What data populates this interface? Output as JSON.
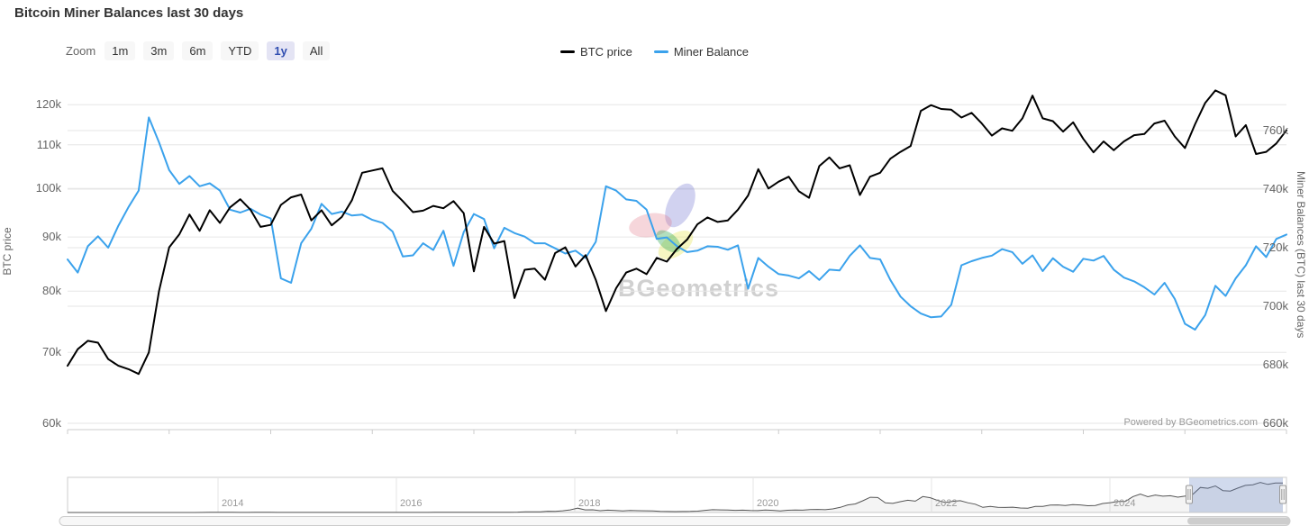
{
  "title": "Bitcoin Miner Balances last 30 days",
  "toolbar": {
    "zoom_label": "Zoom",
    "buttons": [
      {
        "label": "1m",
        "selected": false
      },
      {
        "label": "3m",
        "selected": false
      },
      {
        "label": "6m",
        "selected": false
      },
      {
        "label": "YTD",
        "selected": false
      },
      {
        "label": "1y",
        "selected": true
      },
      {
        "label": "All",
        "selected": false
      }
    ],
    "selected_color": "#e4e4f4",
    "selected_text_color": "#2f4db0"
  },
  "legend": [
    {
      "label": "BTC price",
      "color": "#000000"
    },
    {
      "label": "Miner Balance",
      "color": "#3ba2ec"
    }
  ],
  "axes": {
    "left": {
      "title": "BTC price",
      "ticks": [
        "60k",
        "70k",
        "80k",
        "90k",
        "100k",
        "110k",
        "120k"
      ]
    },
    "right": {
      "title": "Miner Balances (BTC) last 30 days",
      "ticks": [
        "660k",
        "680k",
        "700k",
        "720k",
        "740k",
        "760k"
      ]
    }
  },
  "watermark": "BGeometrics",
  "credits": "Powered by BGeometrics.com",
  "navigator": {
    "years": [
      "2014",
      "2016",
      "2018",
      "2020",
      "2022",
      "2024"
    ],
    "selected_range": "last 1 year"
  },
  "chart_data": {
    "type": "line",
    "selected_range": "1y",
    "grid": true,
    "legend_position": "top-center",
    "left_axis": {
      "label": "BTC price",
      "scale": "log",
      "ticks_k": [
        60,
        70,
        80,
        90,
        100,
        110,
        120
      ],
      "unit": "USD thousands"
    },
    "right_axis": {
      "label": "Miner Balances (BTC) last 30 days",
      "scale": "linear",
      "ticks_k": [
        660,
        680,
        700,
        720,
        740,
        760
      ],
      "unit": "BTC thousands"
    },
    "series": [
      {
        "name": "BTC price",
        "axis": "left",
        "color": "#000000",
        "unit": "USD (k)",
        "values": [
          68.0,
          70.5,
          71.8,
          71.5,
          69.0,
          68.0,
          67.5,
          66.8,
          70.0,
          80.0,
          88.0,
          90.5,
          94.5,
          91.2,
          95.4,
          92.8,
          96.0,
          97.7,
          95.5,
          92.0,
          92.4,
          96.5,
          98.1,
          98.7,
          93.3,
          95.4,
          92.3,
          94.0,
          97.5,
          103.5,
          104.0,
          104.5,
          99.5,
          97.3,
          95.0,
          95.3,
          96.3,
          95.8,
          97.3,
          94.8,
          83.5,
          92.0,
          88.7,
          89.2,
          78.8,
          83.8,
          84.0,
          82.0,
          86.9,
          88.0,
          84.4,
          86.5,
          82.0,
          76.6,
          80.5,
          83.3,
          84.0,
          83.0,
          86.0,
          85.3,
          87.7,
          89.5,
          92.5,
          93.9,
          93.0,
          93.3,
          95.5,
          98.5,
          104.3,
          100.0,
          101.5,
          102.6,
          99.4,
          98.0,
          105.0,
          107.0,
          104.5,
          105.2,
          98.6,
          102.6,
          103.5,
          106.7,
          108.3,
          109.7,
          118.4,
          119.9,
          118.9,
          118.7,
          116.7,
          117.9,
          115.2,
          112.2,
          114.0,
          113.4,
          116.5,
          122.4,
          116.5,
          115.8,
          113.2,
          115.5,
          111.4,
          108.2,
          110.8,
          108.7,
          110.8,
          112.3,
          112.6,
          115.2,
          115.9,
          112.0,
          109.2,
          115.0,
          120.5,
          123.8,
          122.5,
          112.0,
          114.8,
          107.8,
          108.3,
          110.3,
          113.5
        ]
      },
      {
        "name": "Miner Balance",
        "axis": "right",
        "color": "#3ba2ec",
        "unit": "BTC (k)",
        "values": [
          716.0,
          711.5,
          720.5,
          723.9,
          720.0,
          727.5,
          733.9,
          739.5,
          764.5,
          756.0,
          746.5,
          741.8,
          744.5,
          741.0,
          742.0,
          739.5,
          733.0,
          732.0,
          733.3,
          731.3,
          730.0,
          709.5,
          708.0,
          721.5,
          726.5,
          735.0,
          731.5,
          732.3,
          731.0,
          731.3,
          729.5,
          728.5,
          725.5,
          717.0,
          717.4,
          721.5,
          719.2,
          725.8,
          713.8,
          725.3,
          731.5,
          729.8,
          719.8,
          726.8,
          725.0,
          723.8,
          721.5,
          721.5,
          719.8,
          718.0,
          719.0,
          716.5,
          722.0,
          741.0,
          739.5,
          736.5,
          736.0,
          733.0,
          723.0,
          723.5,
          720.5,
          718.5,
          719.0,
          720.5,
          720.3,
          719.3,
          720.8,
          706.0,
          716.5,
          713.5,
          711.0,
          710.5,
          709.5,
          712.0,
          709.0,
          712.5,
          712.2,
          717.2,
          720.8,
          716.5,
          716.0,
          709.0,
          703.3,
          700.0,
          697.5,
          696.2,
          696.5,
          700.5,
          714.0,
          715.4,
          716.5,
          717.3,
          719.5,
          718.5,
          714.5,
          717.4,
          712.0,
          716.4,
          713.5,
          711.8,
          716.2,
          715.6,
          717.2,
          712.5,
          709.8,
          708.5,
          706.5,
          704.0,
          708.0,
          702.5,
          694.0,
          692.0,
          697.0,
          707.0,
          703.5,
          709.5,
          714.0,
          720.5,
          716.8,
          723.0,
          724.5
        ]
      }
    ],
    "navigator_series": {
      "name": "BTC price full history (monthly, USD k)",
      "start": "2012-04",
      "step_months": 1,
      "year_ticks": [
        2014,
        2016,
        2018,
        2020,
        2022,
        2024
      ],
      "values": [
        0.005,
        0.005,
        0.007,
        0.009,
        0.01,
        0.012,
        0.011,
        0.012,
        0.013,
        0.02,
        0.033,
        0.09,
        0.14,
        0.13,
        0.1,
        0.1,
        0.13,
        0.14,
        0.2,
        1.1,
        0.75,
        0.8,
        0.55,
        0.45,
        0.45,
        0.62,
        0.6,
        0.58,
        0.5,
        0.39,
        0.34,
        0.37,
        0.32,
        0.22,
        0.25,
        0.24,
        0.24,
        0.23,
        0.26,
        0.28,
        0.23,
        0.24,
        0.31,
        0.38,
        0.43,
        0.37,
        0.44,
        0.42,
        0.45,
        0.53,
        0.67,
        0.62,
        0.58,
        0.61,
        0.7,
        0.74,
        0.96,
        0.97,
        1.2,
        1.08,
        1.35,
        2.3,
        2.5,
        2.9,
        4.7,
        4.3,
        6.5,
        10.0,
        16.5,
        10.2,
        10.3,
        7.0,
        9.2,
        7.5,
        6.4,
        7.7,
        7.0,
        6.6,
        6.3,
        4.0,
        3.7,
        3.4,
        3.8,
        4.1,
        5.3,
        8.5,
        10.8,
        10.0,
        9.6,
        8.3,
        9.2,
        7.5,
        7.2,
        9.3,
        8.5,
        6.4,
        8.6,
        9.5,
        9.1,
        11.3,
        11.7,
        10.8,
        13.8,
        19.7,
        29.0,
        33.1,
        45.2,
        58.8,
        57.7,
        37.3,
        35.0,
        41.5,
        47.1,
        43.8,
        61.3,
        57.0,
        46.2,
        38.5,
        43.2,
        45.5,
        37.6,
        31.8,
        19.9,
        23.3,
        20.0,
        19.4,
        20.5,
        17.2,
        16.5,
        23.1,
        23.5,
        28.5,
        29.2,
        27.2,
        30.5,
        29.2,
        26.0,
        27.0,
        34.6,
        37.7,
        42.3,
        42.6,
        61.2,
        71.3,
        60.6,
        67.5,
        62.7,
        64.6,
        59.0,
        63.3,
        70.2,
        96.4,
        93.4,
        102.4,
        84.3,
        82.5,
        94.2,
        104.6,
        107.1,
        115.8,
        108.2,
        114.0,
        113.8
      ]
    }
  }
}
